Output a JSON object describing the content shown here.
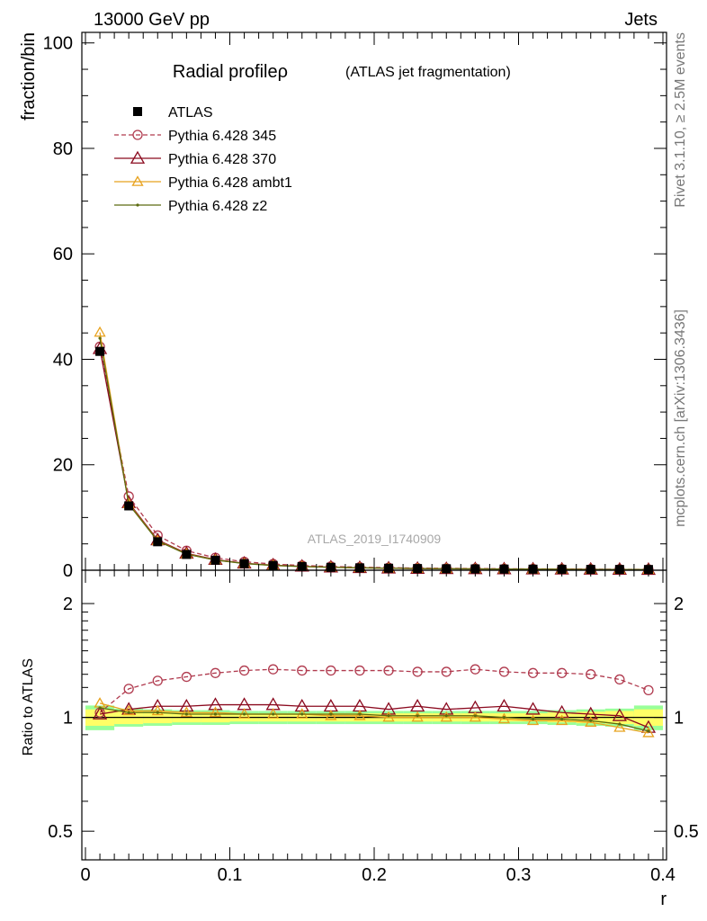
{
  "header": {
    "left": "13000 GeV pp",
    "right": "Jets"
  },
  "side_text": {
    "rivet": "Rivet 3.1.10, ≥ 2.5M events",
    "mcplots": "mcplots.cern.ch [arXiv:1306.3436]"
  },
  "chart_data": [
    {
      "type": "line",
      "title": "Radial profileρ",
      "subtitle": "(ATLAS jet fragmentation)",
      "watermark": "ATLAS_2019_I1740909",
      "ylabel": "fraction/bin",
      "ylim": [
        0,
        102
      ],
      "yticks": [
        0,
        20,
        40,
        60,
        80,
        100
      ],
      "xlim": [
        -0.0025,
        0.4025
      ],
      "legend_position": "top-left",
      "x": [
        0.01,
        0.03,
        0.05,
        0.07,
        0.09,
        0.11,
        0.13,
        0.15,
        0.17,
        0.19,
        0.21,
        0.23,
        0.25,
        0.27,
        0.29,
        0.31,
        0.33,
        0.35,
        0.37,
        0.39
      ],
      "series": [
        {
          "name": "ATLAS",
          "color": "#000000",
          "marker": "square",
          "values": [
            41.5,
            12.2,
            5.4,
            3.0,
            1.9,
            1.25,
            0.9,
            0.7,
            0.55,
            0.45,
            0.38,
            0.32,
            0.28,
            0.25,
            0.22,
            0.2,
            0.18,
            0.16,
            0.15,
            0.14
          ]
        },
        {
          "name": "Pythia 6.428 345",
          "color": "#b03a4e",
          "marker": "circle",
          "dashed": true,
          "values": [
            42.4,
            14.0,
            6.6,
            3.7,
            2.37,
            1.6,
            1.18,
            0.9,
            0.71,
            0.58,
            0.49,
            0.41,
            0.36,
            0.33,
            0.28,
            0.25,
            0.23,
            0.2,
            0.18,
            0.16
          ]
        },
        {
          "name": "Pythia 6.428 370",
          "color": "#8b0a1f",
          "marker": "triangle-big",
          "values": [
            42.0,
            12.8,
            5.75,
            3.2,
            2.02,
            1.32,
            0.96,
            0.74,
            0.58,
            0.47,
            0.39,
            0.33,
            0.29,
            0.26,
            0.23,
            0.21,
            0.19,
            0.17,
            0.15,
            0.13
          ]
        },
        {
          "name": "Pythia 6.428 ambt1",
          "color": "#e8a21e",
          "marker": "triangle",
          "values": [
            45.1,
            12.6,
            5.6,
            3.1,
            1.95,
            1.28,
            0.92,
            0.71,
            0.56,
            0.46,
            0.38,
            0.32,
            0.28,
            0.25,
            0.22,
            0.2,
            0.18,
            0.15,
            0.14,
            0.13
          ]
        },
        {
          "name": "Pythia 6.428 z2",
          "color": "#5c6b10",
          "marker": "dot",
          "values": [
            44.0,
            12.5,
            5.55,
            3.05,
            1.93,
            1.27,
            0.91,
            0.71,
            0.56,
            0.46,
            0.38,
            0.32,
            0.28,
            0.25,
            0.22,
            0.2,
            0.18,
            0.15,
            0.14,
            0.13
          ]
        }
      ]
    },
    {
      "type": "line",
      "ylabel": "Ratio to ATLAS",
      "xlabel": "r",
      "ylim": [
        0.42,
        2.45
      ],
      "log_y": true,
      "yticks": [
        0.5,
        1,
        2
      ],
      "ytick_labels": [
        "0.5",
        "1",
        "2"
      ],
      "xlim": [
        -0.0025,
        0.4025
      ],
      "xticks": [
        0,
        0.1,
        0.2,
        0.3,
        0.4
      ],
      "xtick_labels": [
        "0",
        "0.1",
        "0.2",
        "0.3",
        "0.4"
      ],
      "band": {
        "inner_color": "#ffff66",
        "outer_color": "#99ff99",
        "inner": [
          0.05,
          0.04,
          0.035,
          0.03,
          0.03,
          0.025,
          0.025,
          0.025,
          0.025,
          0.025,
          0.025,
          0.025,
          0.025,
          0.025,
          0.025,
          0.025,
          0.03,
          0.035,
          0.04,
          0.05
        ],
        "outer": [
          0.075,
          0.055,
          0.05,
          0.045,
          0.045,
          0.04,
          0.04,
          0.04,
          0.04,
          0.04,
          0.04,
          0.04,
          0.04,
          0.04,
          0.04,
          0.04,
          0.045,
          0.05,
          0.055,
          0.075
        ]
      },
      "series": [
        {
          "name": "Pythia 6.428 345",
          "color": "#b03a4e",
          "marker": "circle",
          "dashed": true,
          "values": [
            1.03,
            1.19,
            1.25,
            1.28,
            1.31,
            1.33,
            1.34,
            1.33,
            1.33,
            1.33,
            1.33,
            1.32,
            1.32,
            1.34,
            1.32,
            1.31,
            1.31,
            1.3,
            1.26,
            1.18
          ]
        },
        {
          "name": "Pythia 6.428 370",
          "color": "#8b0a1f",
          "marker": "triangle-big",
          "values": [
            1.02,
            1.05,
            1.07,
            1.07,
            1.08,
            1.08,
            1.08,
            1.07,
            1.07,
            1.07,
            1.05,
            1.07,
            1.05,
            1.06,
            1.07,
            1.05,
            1.03,
            1.02,
            1.01,
            0.94
          ]
        },
        {
          "name": "Pythia 6.428 ambt1",
          "color": "#e8a21e",
          "marker": "triangle",
          "values": [
            1.09,
            1.04,
            1.04,
            1.03,
            1.03,
            1.02,
            1.02,
            1.02,
            1.01,
            1.01,
            1.0,
            1.0,
            1.0,
            1.0,
            0.99,
            0.98,
            0.98,
            0.97,
            0.94,
            0.91
          ]
        },
        {
          "name": "Pythia 6.428 z2",
          "color": "#5c6b10",
          "marker": "dot",
          "values": [
            1.06,
            1.03,
            1.03,
            1.02,
            1.02,
            1.02,
            1.02,
            1.02,
            1.02,
            1.02,
            1.01,
            1.01,
            1.01,
            1.01,
            1.0,
            0.99,
            0.99,
            0.98,
            0.96,
            0.92
          ]
        }
      ],
      "reference_line": 1
    }
  ]
}
